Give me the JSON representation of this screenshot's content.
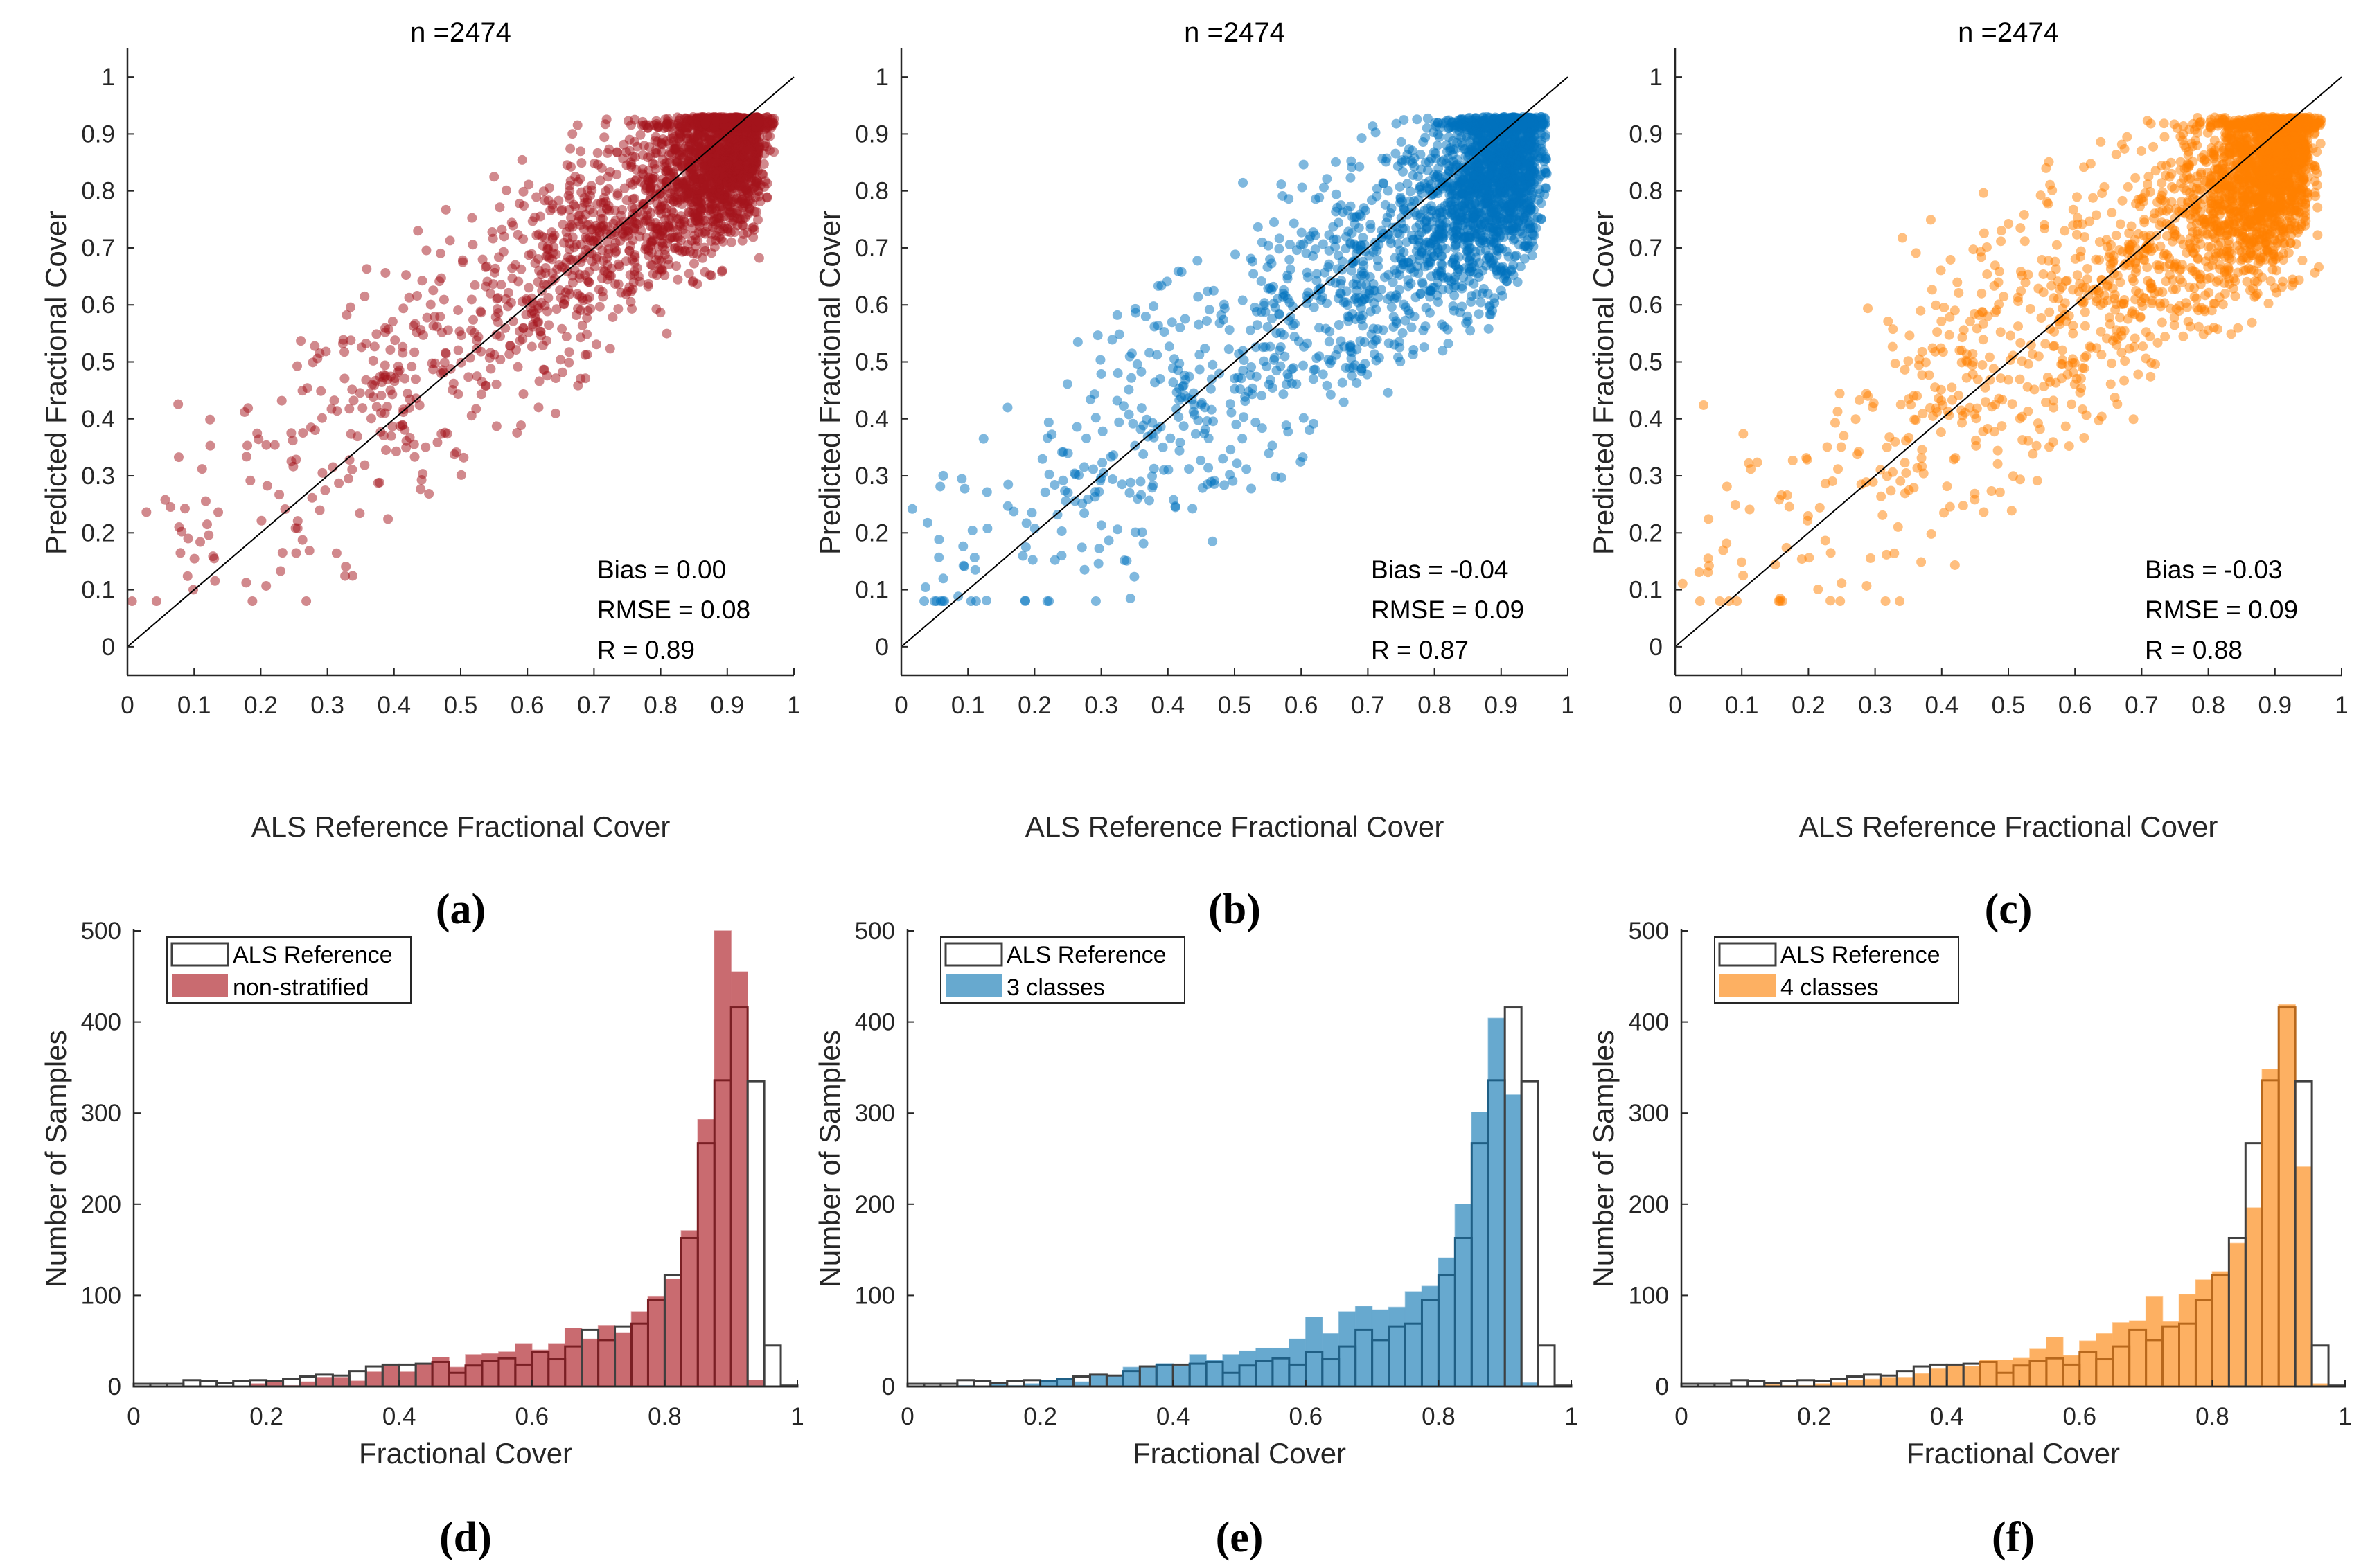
{
  "chart_data": [
    {
      "id": "a",
      "type": "scatter",
      "panel_label": "(a)",
      "title": "n =2474",
      "n": 2474,
      "xlabel": "ALS Reference Fractional Cover",
      "ylabel": "Predicted Fractional Cover",
      "xlim": [
        0,
        1
      ],
      "ylim": [
        -0.05,
        1.05
      ],
      "xticks": [
        "0",
        "0.1",
        "0.2",
        "0.3",
        "0.4",
        "0.5",
        "0.6",
        "0.7",
        "0.8",
        "0.9",
        "1"
      ],
      "yticks": [
        "0",
        "0.1",
        "0.2",
        "0.3",
        "0.4",
        "0.5",
        "0.6",
        "0.7",
        "0.8",
        "0.9",
        "1"
      ],
      "stats": [
        "Bias = 0.00",
        "RMSE = 0.08",
        "R = 0.89"
      ],
      "bias": 0.0,
      "rmse": 0.08,
      "r": 0.89,
      "color": "#A3141C",
      "one_to_one_line": true
    },
    {
      "id": "b",
      "type": "scatter",
      "panel_label": "(b)",
      "title": "n =2474",
      "n": 2474,
      "xlabel": "ALS Reference Fractional Cover",
      "ylabel": "Predicted Fractional Cover",
      "xlim": [
        0,
        1
      ],
      "ylim": [
        -0.05,
        1.05
      ],
      "xticks": [
        "0",
        "0.1",
        "0.2",
        "0.3",
        "0.4",
        "0.5",
        "0.6",
        "0.7",
        "0.8",
        "0.9",
        "1"
      ],
      "yticks": [
        "0",
        "0.1",
        "0.2",
        "0.3",
        "0.4",
        "0.5",
        "0.6",
        "0.7",
        "0.8",
        "0.9",
        "1"
      ],
      "stats": [
        "Bias = -0.04",
        "RMSE = 0.09",
        "R = 0.87"
      ],
      "bias": -0.04,
      "rmse": 0.09,
      "r": 0.87,
      "color": "#0072BD",
      "one_to_one_line": true
    },
    {
      "id": "c",
      "type": "scatter",
      "panel_label": "(c)",
      "title": "n =2474",
      "n": 2474,
      "xlabel": "ALS Reference Fractional Cover",
      "ylabel": "Predicted Fractional Cover",
      "xlim": [
        0,
        1
      ],
      "ylim": [
        -0.05,
        1.05
      ],
      "xticks": [
        "0",
        "0.1",
        "0.2",
        "0.3",
        "0.4",
        "0.5",
        "0.6",
        "0.7",
        "0.8",
        "0.9",
        "1"
      ],
      "yticks": [
        "0",
        "0.1",
        "0.2",
        "0.3",
        "0.4",
        "0.5",
        "0.6",
        "0.7",
        "0.8",
        "0.9",
        "1"
      ],
      "stats": [
        "Bias = -0.03",
        "RMSE = 0.09",
        "R = 0.88"
      ],
      "bias": -0.03,
      "rmse": 0.09,
      "r": 0.88,
      "color": "#FF8000",
      "one_to_one_line": true
    },
    {
      "id": "d",
      "type": "bar",
      "subtype": "histogram",
      "panel_label": "(d)",
      "xlabel": "Fractional Cover",
      "ylabel": "Number of Samples",
      "xlim": [
        0,
        1
      ],
      "ylim": [
        0,
        500
      ],
      "bin_width": 0.025,
      "xticks": [
        "0",
        "0.2",
        "0.4",
        "0.6",
        "0.8",
        "1"
      ],
      "yticks": [
        "0",
        "100",
        "200",
        "300",
        "400",
        "500"
      ],
      "legend": [
        "ALS Reference",
        "non-stratified"
      ],
      "legend_position": "top-left",
      "color": "#C96B70",
      "reference": [
        3,
        3,
        3,
        7,
        6,
        4,
        6,
        7,
        6,
        8,
        11,
        13,
        12,
        17,
        22,
        24,
        24,
        25,
        27,
        15,
        23,
        28,
        31,
        24,
        38,
        30,
        44,
        62,
        51,
        66,
        69,
        95,
        122,
        163,
        267,
        336,
        416,
        335,
        45,
        1
      ],
      "predicted": [
        0,
        0,
        0,
        0,
        0,
        0,
        0,
        3,
        5,
        1,
        5,
        10,
        10,
        6,
        16,
        23,
        16,
        24,
        32,
        21,
        35,
        36,
        38,
        47,
        40,
        47,
        64,
        52,
        67,
        59,
        82,
        99,
        118,
        171,
        293,
        500,
        455,
        7,
        0,
        0
      ]
    },
    {
      "id": "e",
      "type": "bar",
      "subtype": "histogram",
      "panel_label": "(e)",
      "xlabel": "Fractional Cover",
      "ylabel": "Number of Samples",
      "xlim": [
        0,
        1
      ],
      "ylim": [
        0,
        500
      ],
      "bin_width": 0.025,
      "xticks": [
        "0",
        "0.2",
        "0.4",
        "0.6",
        "0.8",
        "1"
      ],
      "yticks": [
        "0",
        "100",
        "200",
        "300",
        "400",
        "500"
      ],
      "legend": [
        "ALS Reference",
        "3 classes"
      ],
      "legend_position": "top-left",
      "color": "#67A9CF",
      "reference": [
        3,
        3,
        3,
        7,
        6,
        4,
        6,
        7,
        6,
        8,
        11,
        13,
        12,
        17,
        22,
        24,
        24,
        25,
        27,
        15,
        23,
        28,
        31,
        24,
        38,
        30,
        44,
        62,
        51,
        66,
        69,
        95,
        122,
        163,
        267,
        336,
        416,
        335,
        45,
        1
      ],
      "predicted": [
        0,
        0,
        0,
        1,
        0,
        3,
        1,
        3,
        6,
        8,
        5,
        12,
        11,
        21,
        21,
        25,
        22,
        35,
        29,
        35,
        39,
        42,
        42,
        52,
        76,
        58,
        82,
        88,
        84,
        87,
        104,
        110,
        141,
        200,
        301,
        404,
        320,
        4,
        0,
        0
      ]
    },
    {
      "id": "f",
      "type": "bar",
      "subtype": "histogram",
      "panel_label": "(f)",
      "xlabel": "Fractional Cover",
      "ylabel": "Number of Samples",
      "xlim": [
        0,
        1
      ],
      "ylim": [
        0,
        500
      ],
      "bin_width": 0.025,
      "xticks": [
        "0",
        "0.2",
        "0.4",
        "0.6",
        "0.8",
        "1"
      ],
      "yticks": [
        "0",
        "100",
        "200",
        "300",
        "400",
        "500"
      ],
      "legend": [
        "ALS Reference",
        "4 classes"
      ],
      "legend_position": "top-left",
      "color": "#FDB062",
      "reference": [
        3,
        3,
        3,
        7,
        6,
        4,
        6,
        7,
        6,
        8,
        11,
        13,
        12,
        17,
        22,
        24,
        24,
        25,
        27,
        15,
        23,
        28,
        31,
        24,
        38,
        30,
        44,
        62,
        51,
        66,
        69,
        95,
        122,
        163,
        267,
        336,
        416,
        335,
        45,
        1
      ],
      "predicted": [
        0,
        0,
        0,
        0,
        0,
        2,
        1,
        1,
        3,
        4,
        7,
        8,
        10,
        10,
        14,
        20,
        23,
        22,
        29,
        29,
        31,
        41,
        54,
        34,
        50,
        58,
        70,
        72,
        99,
        71,
        101,
        117,
        126,
        157,
        196,
        348,
        419,
        241,
        3,
        0
      ]
    }
  ]
}
